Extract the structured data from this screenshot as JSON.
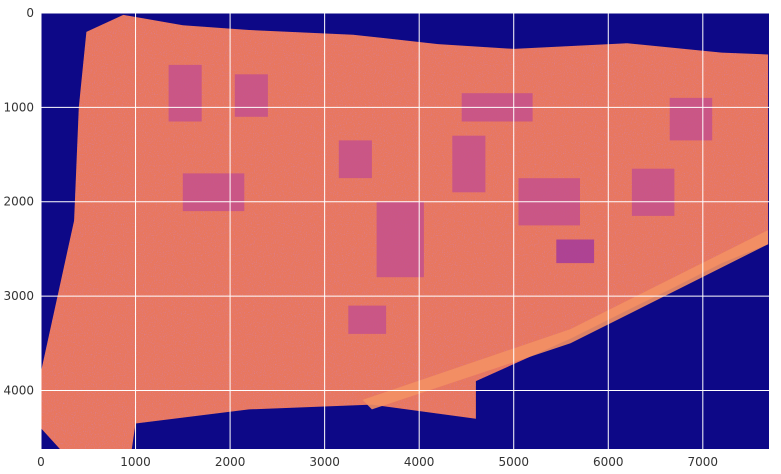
{
  "chart_data": {
    "type": "heatmap",
    "title": "",
    "xlabel": "",
    "ylabel": "",
    "colormap": "plasma",
    "grid": true,
    "xlim": [
      0,
      7700
    ],
    "ylim": [
      4620,
      0
    ],
    "xticks": [
      0,
      1000,
      2000,
      3000,
      4000,
      5000,
      6000,
      7000
    ],
    "yticks": [
      0,
      1000,
      2000,
      3000,
      4000
    ],
    "xtick_labels": [
      "0",
      "1000",
      "2000",
      "3000",
      "4000",
      "5000",
      "6000",
      "7000"
    ],
    "ytick_labels": [
      "0",
      "1000",
      "2000",
      "3000",
      "4000"
    ],
    "colors": {
      "background": "#0d0887",
      "surface": "#e8775f",
      "light_surface": "#f39064",
      "buildings": "#c4508c",
      "dark_buildings": "#a33a9b",
      "grid": "#ffffff"
    },
    "footprint_outline": [
      [
        870,
        20
      ],
      [
        1500,
        130
      ],
      [
        2200,
        180
      ],
      [
        3300,
        230
      ],
      [
        4200,
        330
      ],
      [
        5000,
        380
      ],
      [
        6200,
        320
      ],
      [
        7200,
        420
      ],
      [
        7690,
        440
      ],
      [
        7690,
        2450
      ],
      [
        7200,
        2650
      ],
      [
        6650,
        2930
      ],
      [
        6300,
        3100
      ],
      [
        5600,
        3450
      ],
      [
        4600,
        3900
      ],
      [
        4600,
        4300
      ],
      [
        3500,
        4150
      ],
      [
        2200,
        4200
      ],
      [
        1000,
        4350
      ],
      [
        960,
        4620
      ],
      [
        200,
        4620
      ],
      [
        0,
        4400
      ],
      [
        0,
        3800
      ],
      [
        350,
        2200
      ],
      [
        400,
        1000
      ],
      [
        480,
        200
      ]
    ],
    "building_regions": [
      {
        "x": [
          1350,
          1700
        ],
        "y": [
          550,
          1150
        ],
        "value": "buildings"
      },
      {
        "x": [
          2050,
          2400
        ],
        "y": [
          650,
          1100
        ],
        "value": "buildings"
      },
      {
        "x": [
          1500,
          2150
        ],
        "y": [
          1700,
          2100
        ],
        "value": "buildings"
      },
      {
        "x": [
          3150,
          3500
        ],
        "y": [
          1350,
          1750
        ],
        "value": "buildings"
      },
      {
        "x": [
          3550,
          4050
        ],
        "y": [
          2000,
          2800
        ],
        "value": "buildings"
      },
      {
        "x": [
          4350,
          4700
        ],
        "y": [
          1300,
          1900
        ],
        "value": "buildings"
      },
      {
        "x": [
          5050,
          5700
        ],
        "y": [
          1750,
          2250
        ],
        "value": "buildings"
      },
      {
        "x": [
          5450,
          5850
        ],
        "y": [
          2400,
          2650
        ],
        "value": "dark_buildings"
      },
      {
        "x": [
          6250,
          6700
        ],
        "y": [
          1650,
          2150
        ],
        "value": "buildings"
      },
      {
        "x": [
          4450,
          5200
        ],
        "y": [
          850,
          1150
        ],
        "value": "buildings"
      },
      {
        "x": [
          6650,
          7100
        ],
        "y": [
          900,
          1350
        ],
        "value": "buildings"
      },
      {
        "x": [
          3250,
          3650
        ],
        "y": [
          3100,
          3400
        ],
        "value": "buildings"
      }
    ]
  }
}
